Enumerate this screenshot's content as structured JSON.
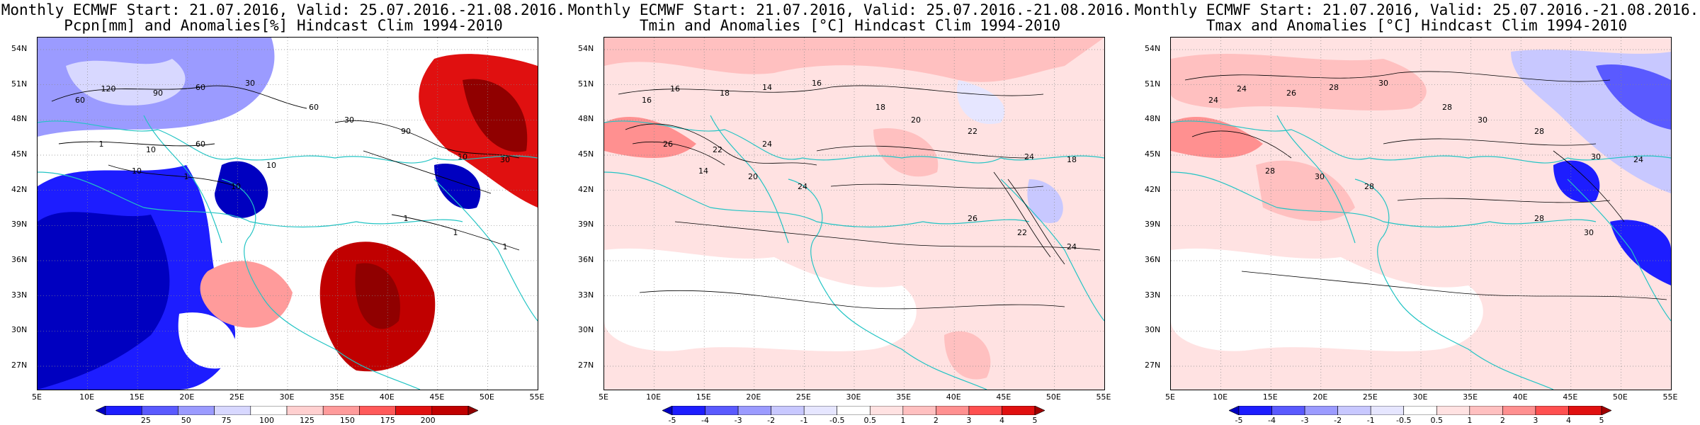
{
  "panels": [
    {
      "id": "pcpn",
      "title_line1": "Monthly ECMWF Start: 21.07.2016, Valid: 25.07.2016.-21.08.2016.",
      "title_line2": "Pcpn[mm] and Anomalies[%] Hindcast Clim 1994-2010",
      "colorbar_labels": [
        "25",
        "50",
        "75",
        "100",
        "125",
        "150",
        "175",
        "200"
      ],
      "colorbar_colors": [
        "#0000c0",
        "#1d1dff",
        "#5a5aff",
        "#9b9bff",
        "#d8d8ff",
        "#ffffff",
        "#ffd0d0",
        "#ff9b9b",
        "#ff5a5a",
        "#e01010",
        "#c00000",
        "#900000"
      ],
      "contour_labels": [
        "60",
        "120",
        "90",
        "60",
        "30",
        "60",
        "30",
        "90",
        "10",
        "30",
        "10",
        "1",
        "10",
        "1",
        "1",
        "1",
        "1",
        "10",
        "60",
        "10"
      ]
    },
    {
      "id": "tmin",
      "title_line1": "Monthly ECMWF Start: 21.07.2016, Valid: 25.07.2016.-21.08.2016.",
      "title_line2": "Tmin and Anomalies [°C] Hindcast Clim 1994-2010",
      "colorbar_labels": [
        "-5",
        "-4",
        "-3",
        "-2",
        "-1",
        "-0.5",
        "0.5",
        "1",
        "2",
        "3",
        "4",
        "5"
      ],
      "colorbar_colors": [
        "#0000c0",
        "#1d1dff",
        "#5a5aff",
        "#9b9bff",
        "#c8c8ff",
        "#e6e6ff",
        "#ffffff",
        "#ffe2e2",
        "#ffc0c0",
        "#ff9090",
        "#ff5050",
        "#e01010",
        "#a00000"
      ],
      "contour_labels": [
        "16",
        "16",
        "18",
        "14",
        "16",
        "18",
        "20",
        "22",
        "24",
        "18",
        "14",
        "20",
        "24",
        "26",
        "22",
        "24",
        "26",
        "22",
        "24"
      ]
    },
    {
      "id": "tmax",
      "title_line1": "Monthly ECMWF Start: 21.07.2016, Valid: 25.07.2016.-21.08.2016.",
      "title_line2": "Tmax and Anomalies [°C] Hindcast Clim 1994-2010",
      "colorbar_labels": [
        "-5",
        "-4",
        "-3",
        "-2",
        "-1",
        "-0.5",
        "0.5",
        "1",
        "2",
        "3",
        "4",
        "5"
      ],
      "colorbar_colors": [
        "#0000c0",
        "#1d1dff",
        "#5a5aff",
        "#9b9bff",
        "#c8c8ff",
        "#e6e6ff",
        "#ffffff",
        "#ffe2e2",
        "#ffc0c0",
        "#ff9090",
        "#ff5050",
        "#e01010",
        "#a00000"
      ],
      "contour_labels": [
        "24",
        "24",
        "26",
        "28",
        "30",
        "28",
        "30",
        "28",
        "30",
        "24",
        "28",
        "30",
        "28",
        "28",
        "30"
      ]
    }
  ],
  "axes": {
    "lat_labels": [
      "54N",
      "51N",
      "48N",
      "45N",
      "42N",
      "39N",
      "36N",
      "33N",
      "30N",
      "27N"
    ],
    "lon_labels": [
      "5E",
      "10E",
      "15E",
      "20E",
      "25E",
      "30E",
      "35E",
      "40E",
      "45E",
      "50E",
      "55E"
    ]
  }
}
